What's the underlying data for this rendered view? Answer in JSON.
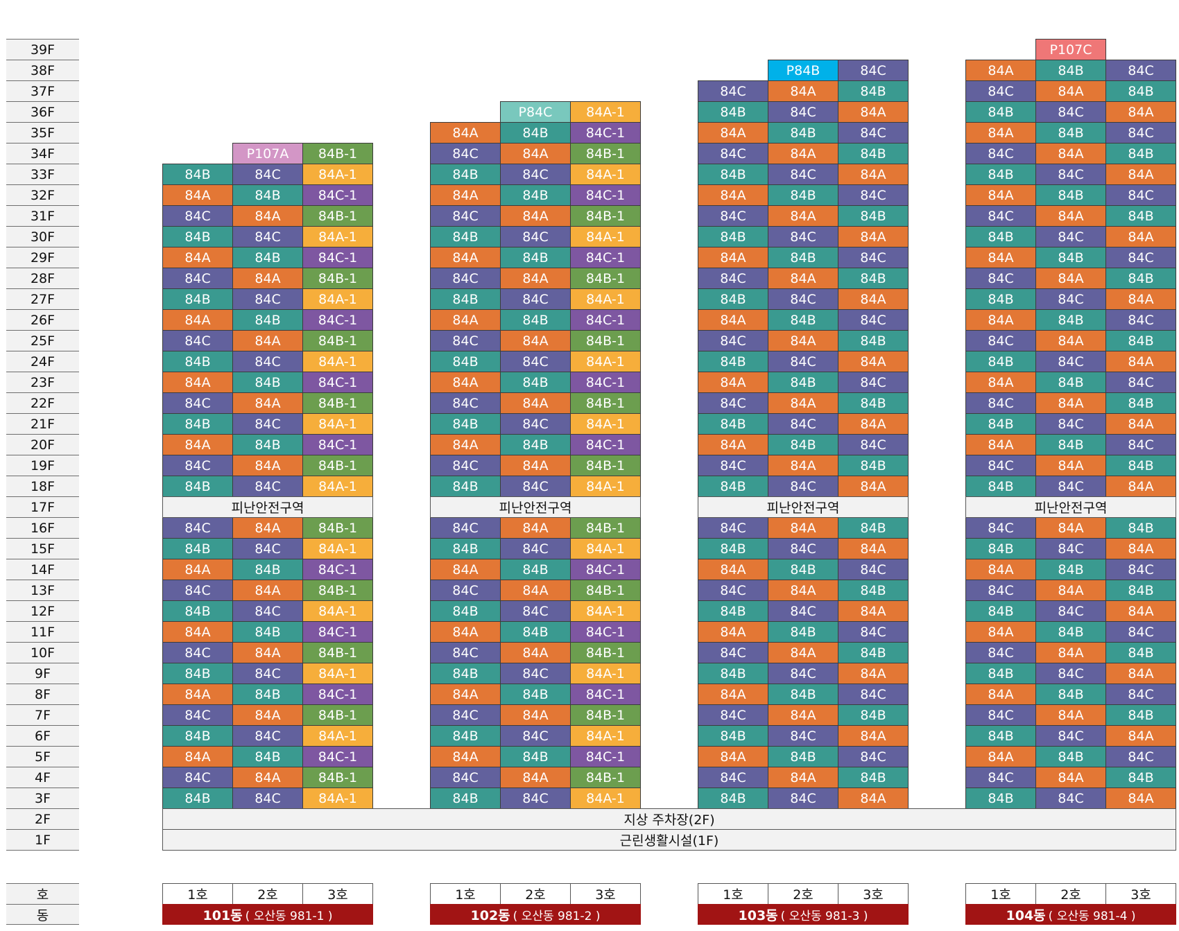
{
  "chart_data": {
    "type": "table",
    "floors_top_to_bottom": [
      "39F",
      "38F",
      "37F",
      "36F",
      "35F",
      "34F",
      "33F",
      "32F",
      "31F",
      "30F",
      "29F",
      "28F",
      "27F",
      "26F",
      "25F",
      "24F",
      "23F",
      "22F",
      "21F",
      "20F",
      "19F",
      "18F",
      "17F",
      "16F",
      "15F",
      "14F",
      "13F",
      "12F",
      "11F",
      "10F",
      "9F",
      "8F",
      "7F",
      "6F",
      "5F",
      "4F",
      "3F",
      "2F",
      "1F"
    ],
    "row_key_labels": {
      "ho": "호",
      "dong": "동"
    },
    "colors": {
      "84A": "#e37735",
      "84B": "#3a9a90",
      "84C": "#62619d",
      "84A-1": "#f6ae3b",
      "84B-1": "#6c9e4f",
      "84C-1": "#7e57a1",
      "P107A": "#d396c6",
      "P84C": "#79c8bd",
      "P84B": "#00b1e9",
      "P107C": "#ef7777",
      "dong_bg": "#a11414"
    },
    "buildings": [
      {
        "dong": "101동",
        "address": "( 오산동 981-1 )",
        "ho": [
          "1호",
          "2호",
          "3호"
        ],
        "floors": {
          "34F": [
            "",
            "P107A",
            "84B-1"
          ],
          "33F": [
            "84B",
            "84C",
            "84A-1"
          ],
          "32F": [
            "84A",
            "84B",
            "84C-1"
          ],
          "31F": [
            "84C",
            "84A",
            "84B-1"
          ],
          "30F": [
            "84B",
            "84C",
            "84A-1"
          ],
          "29F": [
            "84A",
            "84B",
            "84C-1"
          ],
          "28F": [
            "84C",
            "84A",
            "84B-1"
          ],
          "27F": [
            "84B",
            "84C",
            "84A-1"
          ],
          "26F": [
            "84A",
            "84B",
            "84C-1"
          ],
          "25F": [
            "84C",
            "84A",
            "84B-1"
          ],
          "24F": [
            "84B",
            "84C",
            "84A-1"
          ],
          "23F": [
            "84A",
            "84B",
            "84C-1"
          ],
          "22F": [
            "84C",
            "84A",
            "84B-1"
          ],
          "21F": [
            "84B",
            "84C",
            "84A-1"
          ],
          "20F": [
            "84A",
            "84B",
            "84C-1"
          ],
          "19F": [
            "84C",
            "84A",
            "84B-1"
          ],
          "18F": [
            "84B",
            "84C",
            "84A-1"
          ],
          "16F": [
            "84C",
            "84A",
            "84B-1"
          ],
          "15F": [
            "84B",
            "84C",
            "84A-1"
          ],
          "14F": [
            "84A",
            "84B",
            "84C-1"
          ],
          "13F": [
            "84C",
            "84A",
            "84B-1"
          ],
          "12F": [
            "84B",
            "84C",
            "84A-1"
          ],
          "11F": [
            "84A",
            "84B",
            "84C-1"
          ],
          "10F": [
            "84C",
            "84A",
            "84B-1"
          ],
          "9F": [
            "84B",
            "84C",
            "84A-1"
          ],
          "8F": [
            "84A",
            "84B",
            "84C-1"
          ],
          "7F": [
            "84C",
            "84A",
            "84B-1"
          ],
          "6F": [
            "84B",
            "84C",
            "84A-1"
          ],
          "5F": [
            "84A",
            "84B",
            "84C-1"
          ],
          "4F": [
            "84C",
            "84A",
            "84B-1"
          ],
          "3F": [
            "84B",
            "84C",
            "84A-1"
          ]
        }
      },
      {
        "dong": "102동",
        "address": "( 오산동 981-2 )",
        "ho": [
          "1호",
          "2호",
          "3호"
        ],
        "floors": {
          "36F": [
            "",
            "P84C",
            "84A-1"
          ],
          "35F": [
            "84A",
            "84B",
            "84C-1"
          ],
          "34F": [
            "84C",
            "84A",
            "84B-1"
          ],
          "33F": [
            "84B",
            "84C",
            "84A-1"
          ],
          "32F": [
            "84A",
            "84B",
            "84C-1"
          ],
          "31F": [
            "84C",
            "84A",
            "84B-1"
          ],
          "30F": [
            "84B",
            "84C",
            "84A-1"
          ],
          "29F": [
            "84A",
            "84B",
            "84C-1"
          ],
          "28F": [
            "84C",
            "84A",
            "84B-1"
          ],
          "27F": [
            "84B",
            "84C",
            "84A-1"
          ],
          "26F": [
            "84A",
            "84B",
            "84C-1"
          ],
          "25F": [
            "84C",
            "84A",
            "84B-1"
          ],
          "24F": [
            "84B",
            "84C",
            "84A-1"
          ],
          "23F": [
            "84A",
            "84B",
            "84C-1"
          ],
          "22F": [
            "84C",
            "84A",
            "84B-1"
          ],
          "21F": [
            "84B",
            "84C",
            "84A-1"
          ],
          "20F": [
            "84A",
            "84B",
            "84C-1"
          ],
          "19F": [
            "84C",
            "84A",
            "84B-1"
          ],
          "18F": [
            "84B",
            "84C",
            "84A-1"
          ],
          "16F": [
            "84C",
            "84A",
            "84B-1"
          ],
          "15F": [
            "84B",
            "84C",
            "84A-1"
          ],
          "14F": [
            "84A",
            "84B",
            "84C-1"
          ],
          "13F": [
            "84C",
            "84A",
            "84B-1"
          ],
          "12F": [
            "84B",
            "84C",
            "84A-1"
          ],
          "11F": [
            "84A",
            "84B",
            "84C-1"
          ],
          "10F": [
            "84C",
            "84A",
            "84B-1"
          ],
          "9F": [
            "84B",
            "84C",
            "84A-1"
          ],
          "8F": [
            "84A",
            "84B",
            "84C-1"
          ],
          "7F": [
            "84C",
            "84A",
            "84B-1"
          ],
          "6F": [
            "84B",
            "84C",
            "84A-1"
          ],
          "5F": [
            "84A",
            "84B",
            "84C-1"
          ],
          "4F": [
            "84C",
            "84A",
            "84B-1"
          ],
          "3F": [
            "84B",
            "84C",
            "84A-1"
          ]
        }
      },
      {
        "dong": "103동",
        "address": "( 오산동 981-3 )",
        "ho": [
          "1호",
          "2호",
          "3호"
        ],
        "floors": {
          "38F": [
            "",
            "P84B",
            "84C"
          ],
          "37F": [
            "84C",
            "84A",
            "84B"
          ],
          "36F": [
            "84B",
            "84C",
            "84A"
          ],
          "35F": [
            "84A",
            "84B",
            "84C"
          ],
          "34F": [
            "84C",
            "84A",
            "84B"
          ],
          "33F": [
            "84B",
            "84C",
            "84A"
          ],
          "32F": [
            "84A",
            "84B",
            "84C"
          ],
          "31F": [
            "84C",
            "84A",
            "84B"
          ],
          "30F": [
            "84B",
            "84C",
            "84A"
          ],
          "29F": [
            "84A",
            "84B",
            "84C"
          ],
          "28F": [
            "84C",
            "84A",
            "84B"
          ],
          "27F": [
            "84B",
            "84C",
            "84A"
          ],
          "26F": [
            "84A",
            "84B",
            "84C"
          ],
          "25F": [
            "84C",
            "84A",
            "84B"
          ],
          "24F": [
            "84B",
            "84C",
            "84A"
          ],
          "23F": [
            "84A",
            "84B",
            "84C"
          ],
          "22F": [
            "84C",
            "84A",
            "84B"
          ],
          "21F": [
            "84B",
            "84C",
            "84A"
          ],
          "20F": [
            "84A",
            "84B",
            "84C"
          ],
          "19F": [
            "84C",
            "84A",
            "84B"
          ],
          "18F": [
            "84B",
            "84C",
            "84A"
          ],
          "16F": [
            "84C",
            "84A",
            "84B"
          ],
          "15F": [
            "84B",
            "84C",
            "84A"
          ],
          "14F": [
            "84A",
            "84B",
            "84C"
          ],
          "13F": [
            "84C",
            "84A",
            "84B"
          ],
          "12F": [
            "84B",
            "84C",
            "84A"
          ],
          "11F": [
            "84A",
            "84B",
            "84C"
          ],
          "10F": [
            "84C",
            "84A",
            "84B"
          ],
          "9F": [
            "84B",
            "84C",
            "84A"
          ],
          "8F": [
            "84A",
            "84B",
            "84C"
          ],
          "7F": [
            "84C",
            "84A",
            "84B"
          ],
          "6F": [
            "84B",
            "84C",
            "84A"
          ],
          "5F": [
            "84A",
            "84B",
            "84C"
          ],
          "4F": [
            "84C",
            "84A",
            "84B"
          ],
          "3F": [
            "84B",
            "84C",
            "84A"
          ]
        }
      },
      {
        "dong": "104동",
        "address": "( 오산동 981-4 )",
        "ho": [
          "1호",
          "2호",
          "3호"
        ],
        "floors": {
          "39F": [
            "",
            "P107C",
            ""
          ],
          "38F": [
            "84A",
            "84B",
            "84C"
          ],
          "37F": [
            "84C",
            "84A",
            "84B"
          ],
          "36F": [
            "84B",
            "84C",
            "84A"
          ],
          "35F": [
            "84A",
            "84B",
            "84C"
          ],
          "34F": [
            "84C",
            "84A",
            "84B"
          ],
          "33F": [
            "84B",
            "84C",
            "84A"
          ],
          "32F": [
            "84A",
            "84B",
            "84C"
          ],
          "31F": [
            "84C",
            "84A",
            "84B"
          ],
          "30F": [
            "84B",
            "84C",
            "84A"
          ],
          "29F": [
            "84A",
            "84B",
            "84C"
          ],
          "28F": [
            "84C",
            "84A",
            "84B"
          ],
          "27F": [
            "84B",
            "84C",
            "84A"
          ],
          "26F": [
            "84A",
            "84B",
            "84C"
          ],
          "25F": [
            "84C",
            "84A",
            "84B"
          ],
          "24F": [
            "84B",
            "84C",
            "84A"
          ],
          "23F": [
            "84A",
            "84B",
            "84C"
          ],
          "22F": [
            "84C",
            "84A",
            "84B"
          ],
          "21F": [
            "84B",
            "84C",
            "84A"
          ],
          "20F": [
            "84A",
            "84B",
            "84C"
          ],
          "19F": [
            "84C",
            "84A",
            "84B"
          ],
          "18F": [
            "84B",
            "84C",
            "84A"
          ],
          "16F": [
            "84C",
            "84A",
            "84B"
          ],
          "15F": [
            "84B",
            "84C",
            "84A"
          ],
          "14F": [
            "84A",
            "84B",
            "84C"
          ],
          "13F": [
            "84C",
            "84A",
            "84B"
          ],
          "12F": [
            "84B",
            "84C",
            "84A"
          ],
          "11F": [
            "84A",
            "84B",
            "84C"
          ],
          "10F": [
            "84C",
            "84A",
            "84B"
          ],
          "9F": [
            "84B",
            "84C",
            "84A"
          ],
          "8F": [
            "84A",
            "84B",
            "84C"
          ],
          "7F": [
            "84C",
            "84A",
            "84B"
          ],
          "6F": [
            "84B",
            "84C",
            "84A"
          ],
          "5F": [
            "84A",
            "84B",
            "84C"
          ],
          "4F": [
            "84C",
            "84A",
            "84B"
          ],
          "3F": [
            "84B",
            "84C",
            "84A"
          ]
        }
      }
    ],
    "refuge_floor": {
      "floor": "17F",
      "label": "피난안전구역"
    },
    "podium": [
      {
        "floor": "2F",
        "label": "지상 주차장(2F)"
      },
      {
        "floor": "1F",
        "label": "근린생활시설(1F)"
      }
    ]
  }
}
